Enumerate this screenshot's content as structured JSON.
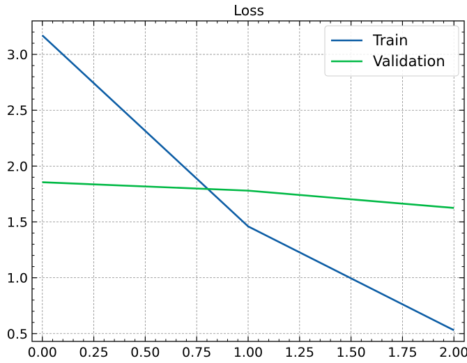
{
  "chart_data": {
    "type": "line",
    "title": "Loss",
    "xlabel": "",
    "ylabel": "",
    "x": [
      0,
      1,
      2
    ],
    "xlim": [
      -0.05,
      2.05
    ],
    "ylim": [
      0.43,
      3.3
    ],
    "x_ticks": [
      0.0,
      0.25,
      0.5,
      0.75,
      1.0,
      1.25,
      1.5,
      1.75,
      2.0
    ],
    "x_tick_labels": [
      "0.00",
      "0.25",
      "0.50",
      "0.75",
      "1.00",
      "1.25",
      "1.50",
      "1.75",
      "2.00"
    ],
    "y_ticks": [
      0.5,
      1.0,
      1.5,
      2.0,
      2.5,
      3.0
    ],
    "y_tick_labels": [
      "0.5",
      "1.0",
      "1.5",
      "2.0",
      "2.5",
      "3.0"
    ],
    "grid": true,
    "legend_position": "top-right",
    "series": [
      {
        "name": "Train",
        "values": [
          3.17,
          1.46,
          0.53
        ],
        "color": "#0C5DA5"
      },
      {
        "name": "Validation",
        "values": [
          1.855,
          1.78,
          1.625
        ],
        "color": "#00B945"
      }
    ]
  }
}
